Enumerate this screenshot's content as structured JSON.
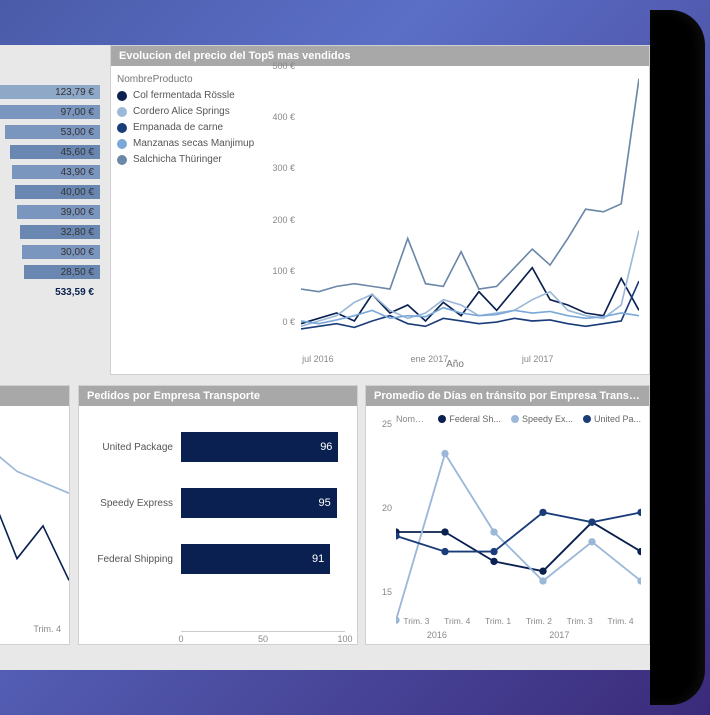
{
  "value_list": {
    "rows": [
      {
        "value": "123,79 €",
        "bar_color": "#8fa8c8",
        "bar_width_pct": 100
      },
      {
        "value": "97,00 €",
        "bar_color": "#7a95be",
        "bar_width_pct": 85
      },
      {
        "value": "53,00 €",
        "bar_color": "#7a95be",
        "bar_width_pct": 55
      },
      {
        "value": "45,60 €",
        "bar_color": "#6a87b2",
        "bar_width_pct": 50
      },
      {
        "value": "43,90 €",
        "bar_color": "#7a95be",
        "bar_width_pct": 48
      },
      {
        "value": "40,00 €",
        "bar_color": "#6a87b2",
        "bar_width_pct": 45
      },
      {
        "value": "39,00 €",
        "bar_color": "#7a95be",
        "bar_width_pct": 43
      },
      {
        "value": "32,80 €",
        "bar_color": "#6a87b2",
        "bar_width_pct": 40
      },
      {
        "value": "30,00 €",
        "bar_color": "#7a95be",
        "bar_width_pct": 38
      },
      {
        "value": "28,50 €",
        "bar_color": "#6a87b2",
        "bar_width_pct": 36
      }
    ],
    "total": "533,59 €",
    "text_color": "#333333",
    "total_color": "#0a2050"
  },
  "top5_chart": {
    "title": "Evolucion del precio del Top5 mas vendidos",
    "legend_header": "NombreProducto",
    "series": [
      {
        "name": "Col fermentada Rössle",
        "color": "#0a2050",
        "points": [
          35,
          45,
          55,
          40,
          90,
          55,
          70,
          40,
          75,
          50,
          95,
          60,
          100,
          140,
          80,
          70,
          55,
          50,
          120,
          60
        ]
      },
      {
        "name": "Cordero Alice Springs",
        "color": "#9bb8d9",
        "points": [
          30,
          40,
          50,
          75,
          90,
          60,
          45,
          55,
          80,
          70,
          50,
          55,
          60,
          80,
          95,
          60,
          50,
          45,
          70,
          210
        ]
      },
      {
        "name": "Empanada de carne",
        "color": "#1a3d7a",
        "points": [
          25,
          30,
          35,
          28,
          40,
          50,
          35,
          30,
          45,
          40,
          35,
          38,
          45,
          40,
          42,
          35,
          30,
          35,
          40,
          115
        ]
      },
      {
        "name": "Manzanas secas Manjimup",
        "color": "#7aa8d8",
        "points": [
          40,
          35,
          42,
          50,
          60,
          45,
          50,
          48,
          65,
          55,
          50,
          52,
          60,
          55,
          58,
          50,
          45,
          48,
          55,
          50
        ]
      },
      {
        "name": "Salchicha Thüringer",
        "color": "#6b88a8",
        "points": [
          100,
          95,
          105,
          110,
          105,
          100,
          195,
          110,
          105,
          170,
          100,
          105,
          140,
          175,
          145,
          195,
          250,
          245,
          260,
          495
        ]
      }
    ],
    "y_ticks": [
      0,
      100,
      200,
      300,
      400,
      500
    ],
    "y_suffix": " €",
    "ylim": [
      0,
      500
    ],
    "x_ticks": [
      {
        "pos": 0.05,
        "label": "jul 2016"
      },
      {
        "pos": 0.38,
        "label": "ene 2017"
      },
      {
        "pos": 0.7,
        "label": "jul 2017"
      }
    ],
    "x_label": "Año",
    "background": "#ffffff",
    "axis_color": "#888888",
    "font_size": 10
  },
  "fragment_chart": {
    "line_color": "#0a2050",
    "line2_color": "#9bb8d9",
    "points1": [
      60,
      30,
      45,
      20
    ],
    "points2": [
      80,
      70,
      65,
      60
    ],
    "x_tick": "Trim. 4"
  },
  "ship_bar": {
    "title": "Pedidos por Empresa Transporte",
    "bars": [
      {
        "label": "United Package",
        "value": 96
      },
      {
        "label": "Speedy Express",
        "value": 95
      },
      {
        "label": "Federal Shipping",
        "value": 91
      }
    ],
    "bar_color": "#0a2050",
    "value_color": "#ffffff",
    "xlim": [
      0,
      100
    ],
    "x_ticks": [
      0,
      50,
      100
    ],
    "label_color": "#555555",
    "font_size": 10
  },
  "transit_chart": {
    "title": "Promedio de Días en tránsito por Empresa Transp...",
    "legend_header": "NombreCo...",
    "series": [
      {
        "name": "Federal Sh...",
        "color": "#0a2050",
        "points": [
          20.0,
          20.0,
          18.5,
          18.0,
          20.5,
          19.0
        ]
      },
      {
        "name": "Speedy Ex...",
        "color": "#9bb8d9",
        "points": [
          15.5,
          24.0,
          20.0,
          17.5,
          19.5,
          17.5
        ]
      },
      {
        "name": "United Pa...",
        "color": "#1a3d7a",
        "points": [
          19.8,
          19.0,
          19.0,
          21.0,
          20.5,
          21.0
        ]
      }
    ],
    "ylim": [
      15,
      25
    ],
    "y_ticks": [
      15,
      20,
      25
    ],
    "x_ticks": [
      "Trim. 3",
      "Trim. 4",
      "Trim. 1",
      "Trim. 2",
      "Trim. 3",
      "Trim. 4"
    ],
    "x_groups": [
      {
        "label": "2016",
        "span": 2
      },
      {
        "label": "2017",
        "span": 4
      }
    ],
    "marker_radius": 3,
    "line_width": 1.5
  },
  "header_bg": "#a8a8a8",
  "header_fg": "#ffffff"
}
